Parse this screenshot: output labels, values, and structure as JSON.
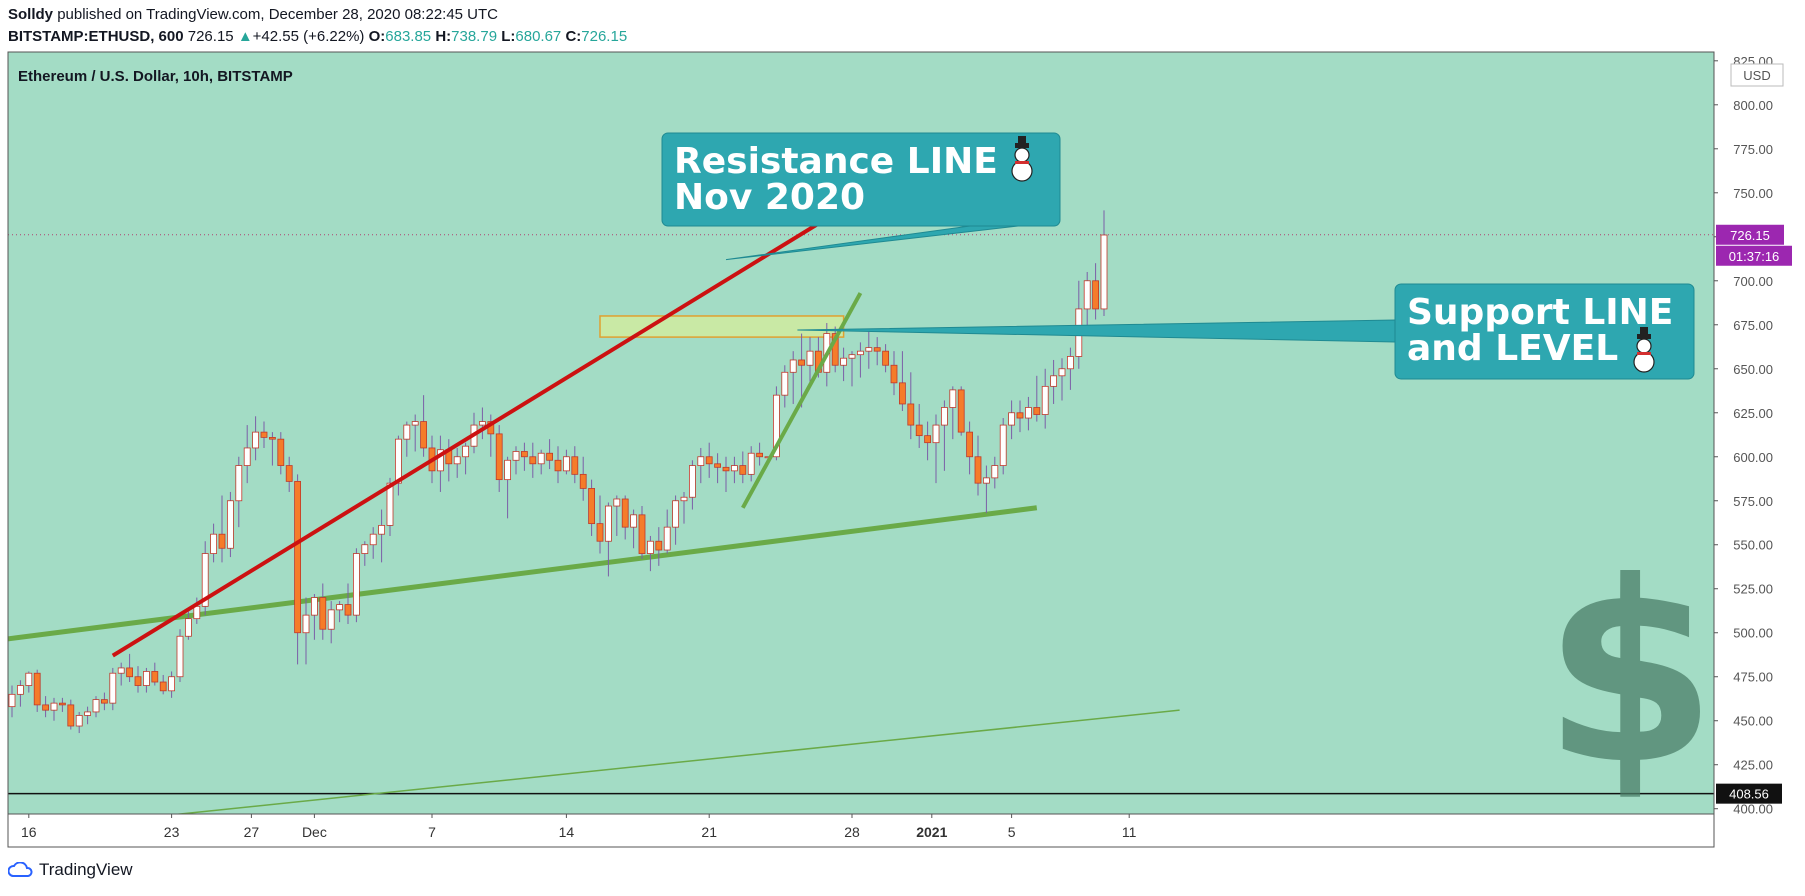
{
  "header": {
    "author": "Solldy",
    "published_text": "published on TradingView.com, December 28, 2020 08:22:45 UTC",
    "symbol": "BITSTAMP:ETHUSD, 600",
    "last": "726.15",
    "change": "+42.55 (+6.22%)",
    "o_label": "O:",
    "o": "683.85",
    "h_label": "H:",
    "h": "738.79",
    "l_label": "L:",
    "l": "680.67",
    "c_label": "C:",
    "c": "726.15"
  },
  "footer": {
    "brand": "TradingView"
  },
  "colors": {
    "background": "#a3dcc5",
    "up_body": "#ffffff",
    "down_body": "#f57c2a",
    "candle_border": "#c0392b",
    "wick": "#7b5ea7",
    "resistance": "#cc1111",
    "support": "#6aaa48",
    "callout": "#2ea7b0",
    "price_tag": "#9c27b0"
  },
  "chart_data": {
    "type": "candlestick",
    "title": "Ethereum / U.S. Dollar, 10h, BITSTAMP",
    "currency": "USD",
    "ylim": [
      397,
      830
    ],
    "y_ticks": [
      "400.00",
      "425.00",
      "450.00",
      "475.00",
      "500.00",
      "525.00",
      "550.00",
      "575.00",
      "600.00",
      "625.00",
      "650.00",
      "675.00",
      "700.00",
      "725.00",
      "750.00",
      "775.00",
      "800.00",
      "825.00"
    ],
    "x_ticks": [
      {
        "label": "16",
        "bar": 2
      },
      {
        "label": "23",
        "bar": 19
      },
      {
        "label": "27",
        "bar": 28.5
      },
      {
        "label": "Dec",
        "bar": 36
      },
      {
        "label": "7",
        "bar": 50
      },
      {
        "label": "14",
        "bar": 66
      },
      {
        "label": "21",
        "bar": 83
      },
      {
        "label": "28",
        "bar": 100
      },
      {
        "label": "2021",
        "bar": 109.5,
        "bold": true
      },
      {
        "label": "5",
        "bar": 119
      },
      {
        "label": "11",
        "bar": 133
      }
    ],
    "last_price": "726.15",
    "countdown": "01:37:16",
    "level_label": "408.56",
    "level_value": 408.56,
    "candles": [
      [
        458,
        470,
        452,
        465
      ],
      [
        465,
        473,
        458,
        470
      ],
      [
        470,
        478,
        466,
        477
      ],
      [
        477,
        479,
        455,
        459
      ],
      [
        459,
        464,
        452,
        456
      ],
      [
        456,
        463,
        450,
        460
      ],
      [
        460,
        463,
        455,
        459
      ],
      [
        459,
        462,
        445,
        447
      ],
      [
        447,
        455,
        443,
        453
      ],
      [
        453,
        458,
        448,
        455
      ],
      [
        455,
        464,
        452,
        462
      ],
      [
        462,
        466,
        456,
        460
      ],
      [
        460,
        480,
        456,
        477
      ],
      [
        477,
        483,
        470,
        480
      ],
      [
        480,
        488,
        472,
        475
      ],
      [
        475,
        481,
        466,
        470
      ],
      [
        470,
        480,
        466,
        478
      ],
      [
        478,
        483,
        470,
        472
      ],
      [
        472,
        476,
        465,
        467
      ],
      [
        467,
        478,
        463,
        475
      ],
      [
        475,
        502,
        472,
        498
      ],
      [
        498,
        512,
        496,
        508
      ],
      [
        508,
        520,
        505,
        515
      ],
      [
        515,
        552,
        510,
        545
      ],
      [
        545,
        562,
        540,
        556
      ],
      [
        556,
        578,
        540,
        548
      ],
      [
        548,
        580,
        543,
        575
      ],
      [
        575,
        600,
        560,
        595
      ],
      [
        595,
        618,
        585,
        605
      ],
      [
        605,
        623,
        598,
        614
      ],
      [
        614,
        620,
        605,
        611
      ],
      [
        611,
        614,
        595,
        610
      ],
      [
        610,
        614,
        590,
        595
      ],
      [
        595,
        600,
        580,
        586
      ],
      [
        586,
        590,
        482,
        500
      ],
      [
        500,
        520,
        482,
        510
      ],
      [
        510,
        522,
        496,
        520
      ],
      [
        520,
        528,
        496,
        502
      ],
      [
        502,
        518,
        494,
        513
      ],
      [
        513,
        518,
        506,
        516
      ],
      [
        516,
        528,
        505,
        510
      ],
      [
        510,
        548,
        506,
        545
      ],
      [
        545,
        552,
        538,
        550
      ],
      [
        550,
        560,
        542,
        556
      ],
      [
        556,
        570,
        540,
        561
      ],
      [
        561,
        588,
        555,
        585
      ],
      [
        585,
        612,
        578,
        610
      ],
      [
        610,
        620,
        600,
        618
      ],
      [
        618,
        624,
        603,
        620
      ],
      [
        620,
        635,
        600,
        605
      ],
      [
        605,
        612,
        585,
        592
      ],
      [
        592,
        612,
        580,
        604
      ],
      [
        604,
        610,
        586,
        596
      ],
      [
        596,
        605,
        588,
        600
      ],
      [
        600,
        608,
        590,
        606
      ],
      [
        606,
        625,
        602,
        618
      ],
      [
        618,
        628,
        610,
        620
      ],
      [
        620,
        624,
        600,
        613
      ],
      [
        613,
        618,
        580,
        587
      ],
      [
        587,
        600,
        565,
        598
      ],
      [
        598,
        606,
        590,
        603
      ],
      [
        603,
        608,
        592,
        600
      ],
      [
        600,
        608,
        588,
        596
      ],
      [
        596,
        604,
        590,
        602
      ],
      [
        602,
        610,
        593,
        598
      ],
      [
        598,
        606,
        585,
        592
      ],
      [
        592,
        604,
        590,
        600
      ],
      [
        600,
        606,
        585,
        590
      ],
      [
        590,
        600,
        575,
        582
      ],
      [
        582,
        587,
        555,
        562
      ],
      [
        562,
        578,
        545,
        552
      ],
      [
        552,
        574,
        532,
        572
      ],
      [
        572,
        578,
        555,
        576
      ],
      [
        576,
        578,
        553,
        560
      ],
      [
        560,
        570,
        548,
        567
      ],
      [
        567,
        572,
        542,
        545
      ],
      [
        545,
        555,
        535,
        552
      ],
      [
        552,
        560,
        538,
        547
      ],
      [
        547,
        570,
        545,
        560
      ],
      [
        560,
        578,
        550,
        575
      ],
      [
        575,
        580,
        562,
        577
      ],
      [
        577,
        598,
        570,
        595
      ],
      [
        595,
        605,
        585,
        600
      ],
      [
        600,
        608,
        588,
        596
      ],
      [
        596,
        602,
        585,
        594
      ],
      [
        594,
        600,
        580,
        592
      ],
      [
        592,
        600,
        585,
        595
      ],
      [
        595,
        603,
        585,
        590
      ],
      [
        590,
        606,
        586,
        602
      ],
      [
        602,
        608,
        595,
        600
      ],
      [
        600,
        600,
        600,
        600
      ],
      [
        600,
        640,
        598,
        635
      ],
      [
        635,
        652,
        628,
        648
      ],
      [
        648,
        660,
        630,
        655
      ],
      [
        655,
        670,
        628,
        652
      ],
      [
        652,
        668,
        640,
        660
      ],
      [
        660,
        668,
        645,
        648
      ],
      [
        648,
        676,
        640,
        670
      ],
      [
        670,
        674,
        648,
        652
      ],
      [
        652,
        662,
        643,
        656
      ],
      [
        656,
        660,
        640,
        658
      ],
      [
        658,
        665,
        645,
        660
      ],
      [
        660,
        672,
        650,
        662
      ],
      [
        662,
        668,
        652,
        660
      ],
      [
        660,
        664,
        648,
        652
      ],
      [
        652,
        660,
        635,
        642
      ],
      [
        642,
        660,
        626,
        630
      ],
      [
        630,
        648,
        610,
        618
      ],
      [
        618,
        630,
        605,
        612
      ],
      [
        612,
        620,
        598,
        608
      ],
      [
        608,
        624,
        585,
        618
      ],
      [
        618,
        632,
        592,
        628
      ],
      [
        628,
        640,
        610,
        638
      ],
      [
        638,
        640,
        612,
        614
      ],
      [
        614,
        620,
        590,
        600
      ],
      [
        600,
        612,
        578,
        585
      ],
      [
        585,
        595,
        568,
        588
      ],
      [
        588,
        600,
        582,
        595
      ],
      [
        595,
        622,
        590,
        618
      ],
      [
        618,
        632,
        610,
        625
      ],
      [
        625,
        632,
        614,
        622
      ],
      [
        622,
        634,
        615,
        628
      ],
      [
        628,
        646,
        620,
        624
      ],
      [
        624,
        650,
        616,
        640
      ],
      [
        640,
        655,
        630,
        646
      ],
      [
        646,
        656,
        632,
        650
      ],
      [
        650,
        662,
        638,
        657
      ],
      [
        657,
        700,
        650,
        684
      ],
      [
        684,
        705,
        670,
        700
      ],
      [
        700,
        710,
        678,
        684
      ],
      [
        684,
        740,
        680,
        726
      ]
    ],
    "resistance_line": {
      "from": [
        12,
        487
      ],
      "to": [
        102,
        750
      ]
    },
    "support_line_long": {
      "from": [
        -3,
        495
      ],
      "to": [
        122,
        571
      ]
    },
    "support_line_steep": {
      "from": [
        87,
        571
      ],
      "to": [
        101,
        693
      ]
    },
    "support_line_thin": {
      "from": [
        16,
        395
      ],
      "to": [
        139,
        456
      ]
    },
    "support_zone": {
      "bars": [
        70,
        99
      ],
      "low": 668,
      "high": 680
    },
    "callouts": [
      {
        "name": "resistance-callout",
        "line1": "Resistance LINE",
        "line2": "Nov 2020",
        "emoji": "☃",
        "pointer": [
          85,
          712
        ]
      },
      {
        "name": "support-callout",
        "line1": "Support  LINE",
        "line2": "and LEVEL",
        "emoji": "☃",
        "pointer": [
          93.5,
          672
        ]
      }
    ]
  }
}
